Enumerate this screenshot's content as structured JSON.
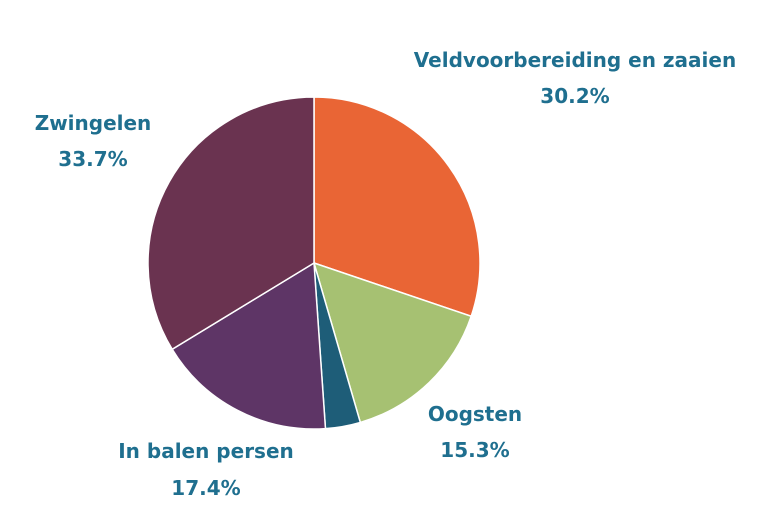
{
  "chart_data": {
    "type": "pie",
    "slices": [
      {
        "label": "Veldvoorbereiding en zaaien",
        "value": 30.2,
        "value_label": "30.2%",
        "color": "#e96535"
      },
      {
        "label": "Oogsten",
        "value": 15.3,
        "value_label": "15.3%",
        "color": "#a6c172"
      },
      {
        "label": "",
        "value": 3.4,
        "value_label": "",
        "color": "#1e5d78"
      },
      {
        "label": "In balen persen",
        "value": 17.4,
        "value_label": "17.4%",
        "color": "#5e3566"
      },
      {
        "label": "Zwingelen",
        "value": 33.7,
        "value_label": "33.7%",
        "color": "#6a3350"
      }
    ],
    "label_color": "#1f6f8f",
    "start_angle": "12 o'clock",
    "direction": "clockwise"
  }
}
